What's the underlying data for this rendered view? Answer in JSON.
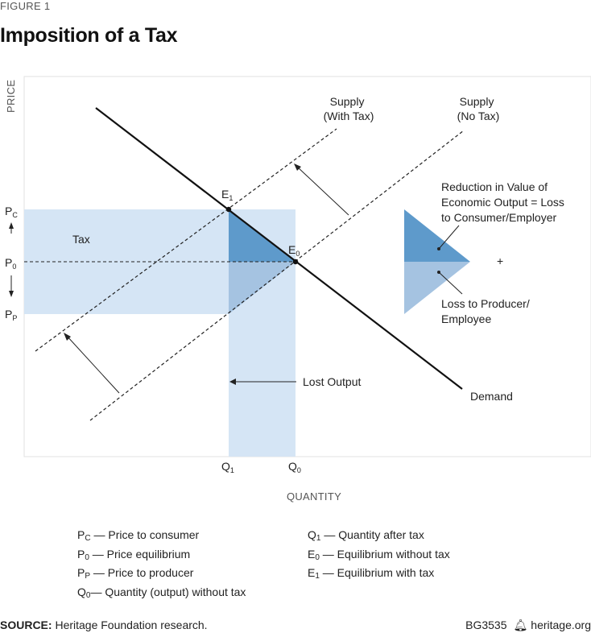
{
  "figure_label": "FIGURE 1",
  "title": "Imposition of a Tax",
  "axes": {
    "y_title": "PRICE",
    "x_title": "QUANTITY"
  },
  "curves": {
    "supply_with_tax": [
      "Supply",
      "(With Tax)"
    ],
    "supply_no_tax": [
      "Supply",
      "(No Tax)"
    ],
    "demand": "Demand"
  },
  "points": {
    "e1": {
      "main": "E",
      "sub": "1"
    },
    "e0": {
      "main": "E",
      "sub": "0"
    }
  },
  "price_ticks": {
    "pc": {
      "main": "P",
      "sub": "C"
    },
    "p0": {
      "main": "P",
      "sub": "0"
    },
    "pp": {
      "main": "P",
      "sub": "P"
    }
  },
  "quantity_ticks": {
    "q1": {
      "main": "Q",
      "sub": "1"
    },
    "q0": {
      "main": "Q",
      "sub": "0"
    }
  },
  "annotations": {
    "tax": "Tax",
    "lost_output": "Lost Output",
    "reduction": [
      "Reduction in Value of",
      "Economic Output = Loss",
      "to Consumer/Employer"
    ],
    "plus": "+",
    "loss_producer": [
      "Loss to Producer/",
      "Employee"
    ]
  },
  "legend": [
    {
      "main": "P",
      "sub": "C",
      "text": "— Price to consumer"
    },
    {
      "main": "P",
      "sub": "0",
      "text": "— Price equilibrium"
    },
    {
      "main": "P",
      "sub": "P",
      "text": "— Price to producer"
    },
    {
      "main": "Q",
      "sub": "0",
      "text": "— Quantity (output) without tax"
    },
    {
      "main": "Q",
      "sub": "1",
      "text": "— Quantity after tax"
    },
    {
      "main": "E",
      "sub": "0",
      "text": "— Equilibrium  without tax"
    },
    {
      "main": "E",
      "sub": "1",
      "text": "— Equilibrium with tax"
    }
  ],
  "footer": {
    "source_label": "SOURCE:",
    "source_text": "Heritage Foundation research.",
    "code": "BG3535",
    "site": "heritage.org"
  },
  "colors": {
    "light_blue": "#d5e5f5",
    "dark_blue": "#5e9acb",
    "mid_blue": "#a5c3e1"
  }
}
